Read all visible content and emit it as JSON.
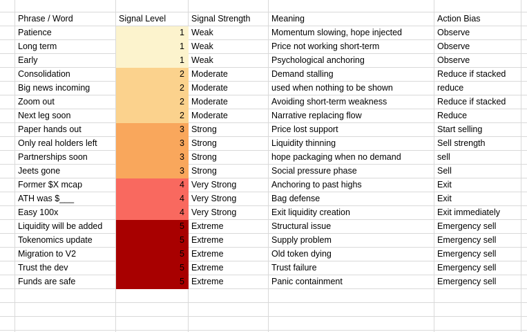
{
  "table": {
    "columns": [
      {
        "label": "Phrase / Word"
      },
      {
        "label": "Signal Level"
      },
      {
        "label": "Signal Strength"
      },
      {
        "label": "Meaning"
      },
      {
        "label": "Action Bias"
      }
    ],
    "rows": [
      {
        "phrase": "Patience",
        "level": 1,
        "strength": "Weak",
        "meaning": "Momentum slowing, hope injected",
        "action": "Observe"
      },
      {
        "phrase": "Long term",
        "level": 1,
        "strength": "Weak",
        "meaning": "Price not working short-term",
        "action": "Observe"
      },
      {
        "phrase": "Early",
        "level": 1,
        "strength": "Weak",
        "meaning": "Psychological anchoring",
        "action": "Observe"
      },
      {
        "phrase": "Consolidation",
        "level": 2,
        "strength": "Moderate",
        "meaning": "Demand stalling",
        "action": "Reduce if stacked"
      },
      {
        "phrase": "Big news incoming",
        "level": 2,
        "strength": "Moderate",
        "meaning": "used when nothing to be shown",
        "action": "reduce"
      },
      {
        "phrase": "Zoom out",
        "level": 2,
        "strength": "Moderate",
        "meaning": "Avoiding short-term weakness",
        "action": "Reduce if stacked"
      },
      {
        "phrase": "Next leg soon",
        "level": 2,
        "strength": "Moderate",
        "meaning": "Narrative replacing flow",
        "action": "Reduce"
      },
      {
        "phrase": "Paper hands out",
        "level": 3,
        "strength": "Strong",
        "meaning": "Price lost support",
        "action": "Start selling"
      },
      {
        "phrase": "Only real holders left",
        "level": 3,
        "strength": "Strong",
        "meaning": "Liquidity thinning",
        "action": "Sell strength"
      },
      {
        "phrase": "Partnerships soon",
        "level": 3,
        "strength": "Strong",
        "meaning": "hope packaging when no demand",
        "action": "sell"
      },
      {
        "phrase": "Jeets gone",
        "level": 3,
        "strength": "Strong",
        "meaning": "Social pressure phase",
        "action": "Sell"
      },
      {
        "phrase": "Former $X mcap",
        "level": 4,
        "strength": "Very Strong",
        "meaning": "Anchoring to past highs",
        "action": "Exit"
      },
      {
        "phrase": "ATH was $___",
        "level": 4,
        "strength": "Very Strong",
        "meaning": "Bag defense",
        "action": "Exit"
      },
      {
        "phrase": "Easy 100x",
        "level": 4,
        "strength": "Very Strong",
        "meaning": "Exit liquidity creation",
        "action": "Exit immediately"
      },
      {
        "phrase": "Liquidity will be added",
        "level": 5,
        "strength": "Extreme",
        "meaning": "Structural issue",
        "action": "Emergency sell"
      },
      {
        "phrase": "Tokenomics update",
        "level": 5,
        "strength": "Extreme",
        "meaning": "Supply problem",
        "action": "Emergency sell"
      },
      {
        "phrase": "Migration to V2",
        "level": 5,
        "strength": "Extreme",
        "meaning": "Old token dying",
        "action": "Emergency sell"
      },
      {
        "phrase": "Trust the dev",
        "level": 5,
        "strength": "Extreme",
        "meaning": "Trust failure",
        "action": "Emergency sell"
      },
      {
        "phrase": "Funds are safe",
        "level": 5,
        "strength": "Extreme",
        "meaning": "Panic containment",
        "action": "Emergency sell"
      }
    ]
  },
  "level_colors": {
    "1": "#FCF3CD",
    "2": "#FBD28D",
    "3": "#F9A75C",
    "4": "#F9695F",
    "5": "#A80000"
  },
  "gridline_color": "#d9d9d9"
}
